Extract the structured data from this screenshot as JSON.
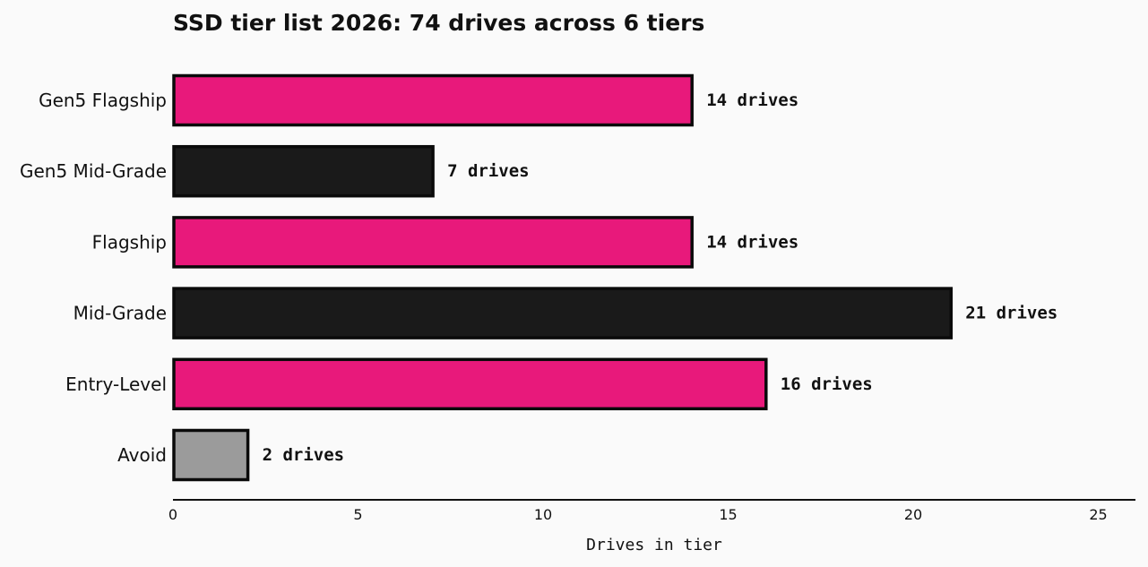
{
  "chart_data": {
    "type": "bar",
    "orientation": "horizontal",
    "title": "SSD tier list 2026: 74 drives across 6 tiers",
    "xlabel": "Drives in tier",
    "ylabel": "",
    "categories": [
      "Gen5 Flagship",
      "Gen5 Mid-Grade",
      "Flagship",
      "Mid-Grade",
      "Entry-Level",
      "Avoid"
    ],
    "values": [
      14,
      7,
      14,
      21,
      16,
      2
    ],
    "value_labels": [
      "14 drives",
      "7 drives",
      "14 drives",
      "21 drives",
      "16 drives",
      "2 drives"
    ],
    "colors": [
      "#e8197b",
      "#1a1a1a",
      "#e8197b",
      "#1a1a1a",
      "#e8197b",
      "#9b9b9b"
    ],
    "edge_color": "#0a0a0a",
    "xlim": [
      0,
      26
    ],
    "xticks": [
      0,
      5,
      10,
      15,
      20,
      25
    ],
    "grid": false,
    "legend": "none"
  }
}
